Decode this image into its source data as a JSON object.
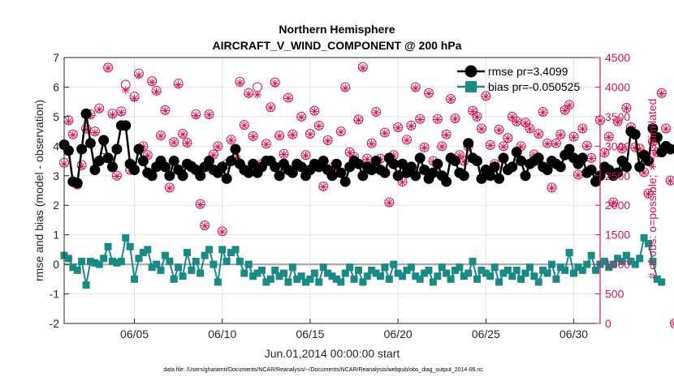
{
  "chart_data": {
    "type": "line",
    "title": "Northern Hemisphere",
    "subtitle": "AIRCRAFT_V_WIND_COMPONENT @ 200 hPa",
    "xlabel": "Jun.01,2014 00:00:00 start",
    "ylabel_left": "rmse and bias (model - observation)",
    "ylabel_right": "# of obs: o=possible; ∗=assimilated",
    "footer": "data file: /Users/gharamti/Documents/NCAR/Reanalysis/~/Documents/NCAR/Reanalysis/webpub/obs_diag_output_2014-06.nc",
    "xlim": [
      1,
      31.5
    ],
    "ylim_left": [
      -2,
      7
    ],
    "ylim_right": [
      0,
      4500
    ],
    "x_ticks": [
      5,
      10,
      15,
      20,
      25,
      30
    ],
    "x_tick_labels": [
      "06/05",
      "06/10",
      "06/15",
      "06/20",
      "06/25",
      "06/30"
    ],
    "y_left_ticks": [
      "-2",
      "-1",
      "0",
      "1",
      "2",
      "3",
      "4",
      "5",
      "6",
      "7"
    ],
    "y_right_ticks": [
      "0",
      "500",
      "1000",
      "1500",
      "2000",
      "2500",
      "3000",
      "3500",
      "4000",
      "4500"
    ],
    "legend": [
      {
        "label": "rmse pr=3.4099",
        "color": "#000000",
        "marker": "circle"
      },
      {
        "label": "bias pr=-0.050525",
        "color": "#1b8a85",
        "marker": "square"
      }
    ],
    "colors": {
      "rmse": "#000000",
      "bias": "#1b8a85",
      "obs": "#d4145a",
      "zero_line": "#b0b0b0",
      "grid": "#e3e3e3"
    },
    "series": [
      {
        "name": "rmse",
        "x_start": 1.0,
        "x_step": 0.25,
        "values": [
          4.05,
          3.85,
          2.8,
          2.75,
          3.9,
          5.1,
          4.1,
          3.2,
          3.5,
          4.2,
          3.6,
          3.3,
          3.9,
          4.7,
          4.7,
          3.4,
          3.2,
          3.9,
          3.5,
          3.1,
          3.0,
          3.3,
          3.5,
          3.3,
          3.0,
          3.5,
          3.2,
          3.0,
          3.4,
          3.3,
          3.2,
          3.0,
          3.3,
          3.5,
          3.2,
          3.1,
          3.3,
          2.9,
          3.5,
          3.9,
          3.4,
          3.2,
          3.1,
          3.4,
          3.1,
          3.3,
          3.5,
          3.5,
          3.3,
          3.0,
          3.4,
          3.2,
          3.1,
          3.4,
          3.3,
          3.0,
          3.2,
          3.4,
          3.3,
          3.5,
          3.2,
          3.0,
          3.4,
          3.1,
          2.8,
          3.3,
          3.5,
          3.4,
          3.0,
          3.3,
          3.2,
          3.5,
          3.2,
          3.1,
          3.6,
          3.4,
          3.0,
          3.4,
          3.1,
          3.3,
          3.0,
          3.6,
          3.2,
          2.9,
          3.1,
          3.4,
          3.0,
          2.8,
          3.6,
          3.5,
          3.1,
          3.0,
          4.1,
          3.6,
          3.5,
          2.9,
          3.2,
          3.0,
          3.3,
          2.9,
          3.6,
          3.2,
          3.3,
          3.8,
          3.5,
          3.0,
          3.4,
          3.5,
          3.6,
          3.3,
          3.2,
          3.5,
          3.4,
          3.3,
          3.7,
          3.9,
          3.6,
          3.4,
          3.6,
          3.1,
          3.2,
          2.8,
          3.0,
          3.3,
          3.2,
          3.0,
          3.1,
          3.5,
          3.3,
          4.5,
          4.4,
          3.3,
          3.7,
          3.5,
          4.6,
          4.3,
          3.8,
          4.0,
          3.9
        ]
      },
      {
        "name": "bias",
        "x_start": 1.0,
        "x_step": 0.25,
        "values": [
          0.3,
          0.2,
          -0.1,
          -0.2,
          0.1,
          -0.7,
          0.1,
          0.05,
          0.0,
          0.2,
          0.6,
          0.1,
          0.05,
          0.1,
          0.9,
          0.6,
          -0.5,
          0.2,
          0.4,
          0.5,
          -0.1,
          0.0,
          -0.2,
          0.3,
          0.1,
          -0.5,
          -0.1,
          -0.4,
          0.4,
          -0.2,
          0.1,
          -0.3,
          0.3,
          0.5,
          0.0,
          -0.6,
          0.5,
          0.1,
          0.4,
          0.5,
          0.1,
          -0.3,
          0.0,
          -0.4,
          -0.3,
          -0.2,
          -0.6,
          -0.5,
          -0.2,
          -0.4,
          -0.3,
          -0.6,
          -0.1,
          -0.5,
          -0.4,
          -0.6,
          -0.5,
          -0.3,
          -0.6,
          -0.1,
          -0.3,
          -0.4,
          -0.5,
          -0.6,
          -0.3,
          -0.1,
          -0.5,
          -0.2,
          -0.6,
          -0.4,
          -0.2,
          -0.3,
          -0.4,
          -0.1,
          -0.5,
          0.0,
          -0.3,
          -0.4,
          -0.2,
          -0.1,
          -0.4,
          -0.5,
          -0.3,
          -0.2,
          -0.6,
          -0.4,
          -0.1,
          -0.3,
          -0.5,
          -0.2,
          -0.1,
          -0.4,
          -0.3,
          0.1,
          -0.5,
          -0.2,
          -0.3,
          -0.4,
          -0.1,
          -0.6,
          -0.3,
          -0.2,
          -0.4,
          -0.2,
          -0.5,
          -0.3,
          -0.1,
          -0.4,
          -0.6,
          -0.2,
          -0.3,
          0.0,
          -0.5,
          -0.1,
          -0.2,
          0.4,
          -0.3,
          -0.1,
          -0.2,
          0.0,
          0.3,
          -0.2,
          0.0,
          0.1,
          -0.1,
          0.0,
          0.2,
          0.1,
          0.3,
          0.1,
          0.0,
          0.2,
          0.9,
          0.7,
          0.1,
          -0.5,
          -0.6
        ]
      },
      {
        "name": "obs_possible",
        "x_start": 1.0,
        "x_step": 0.25,
        "values": [
          2720,
          3440,
          3200,
          2350,
          2680,
          3300,
          3540,
          3250,
          3640,
          2800,
          4330,
          3550,
          2500,
          3590,
          4040,
          2600,
          3840,
          4230,
          3000,
          2850,
          4100,
          3940,
          3180,
          3610,
          2300,
          3070,
          4060,
          3210,
          3060,
          2670,
          3540,
          2020,
          1660,
          3540,
          2860,
          3000,
          1560,
          2700,
          3110,
          2800,
          4090,
          3360,
          3900,
          3170,
          4000,
          2700,
          3040,
          3660,
          4080,
          3180,
          2870,
          3820,
          3200,
          2680,
          3500,
          2850,
          3210,
          3600,
          3350,
          2320,
          3100,
          2640,
          2550,
          3250,
          4000,
          2900,
          2820,
          3450,
          4340,
          2790,
          3050,
          3580,
          2790,
          3230,
          2050,
          2850,
          3320,
          2400,
          3110,
          3350,
          4000,
          3460,
          2980,
          3900,
          2750,
          3460,
          3000,
          3200,
          3800,
          3470,
          2850,
          2750,
          3000,
          3600,
          3500,
          3300,
          3850,
          3020,
          2700,
          3280,
          3000,
          3140,
          3500,
          3420,
          3000,
          3400,
          3300,
          2860,
          3210,
          3580,
          3050,
          2300,
          3050,
          3200,
          3610,
          3700,
          3160,
          2520,
          3300,
          3010,
          2800,
          2400,
          3440,
          2890,
          3160,
          2050,
          3420,
          2960,
          3650,
          3320,
          2980,
          2960,
          2560,
          2200,
          3080,
          2900,
          3900,
          3300,
          2420,
          0
        ]
      },
      {
        "name": "obs_assimilated",
        "x_start": 1.0,
        "x_step": 0.25,
        "values": [
          2700,
          3420,
          3190,
          2340,
          2660,
          3280,
          3520,
          3230,
          3620,
          2790,
          4320,
          3530,
          2490,
          3570,
          3950,
          2590,
          3810,
          4200,
          2990,
          2840,
          4080,
          3920,
          3170,
          3600,
          2290,
          3060,
          4040,
          3200,
          3050,
          2660,
          3520,
          2010,
          1650,
          3530,
          2850,
          2990,
          1550,
          2690,
          3100,
          2790,
          4070,
          3350,
          3880,
          3160,
          3870,
          2690,
          3030,
          3650,
          4060,
          3170,
          2860,
          3810,
          3190,
          2670,
          3490,
          2840,
          3200,
          3590,
          3340,
          2310,
          3090,
          2630,
          2540,
          3240,
          3980,
          2890,
          2810,
          3440,
          4320,
          2780,
          3040,
          3570,
          2780,
          3220,
          2040,
          2840,
          3310,
          2390,
          3100,
          3340,
          3980,
          3450,
          2970,
          3890,
          2740,
          3450,
          2990,
          3190,
          3790,
          3460,
          2840,
          2740,
          2990,
          3590,
          3490,
          3290,
          3840,
          3010,
          2690,
          3270,
          2990,
          3130,
          3490,
          3410,
          2990,
          3390,
          3290,
          2850,
          3200,
          3570,
          3040,
          2290,
          3040,
          3190,
          3600,
          3690,
          3150,
          2510,
          3290,
          3000,
          2790,
          2390,
          3430,
          2880,
          3150,
          2040,
          3410,
          2950,
          3640,
          3310,
          2970,
          2950,
          2550,
          2190,
          3070,
          2890,
          3890,
          3290,
          2410,
          0
        ]
      }
    ]
  }
}
